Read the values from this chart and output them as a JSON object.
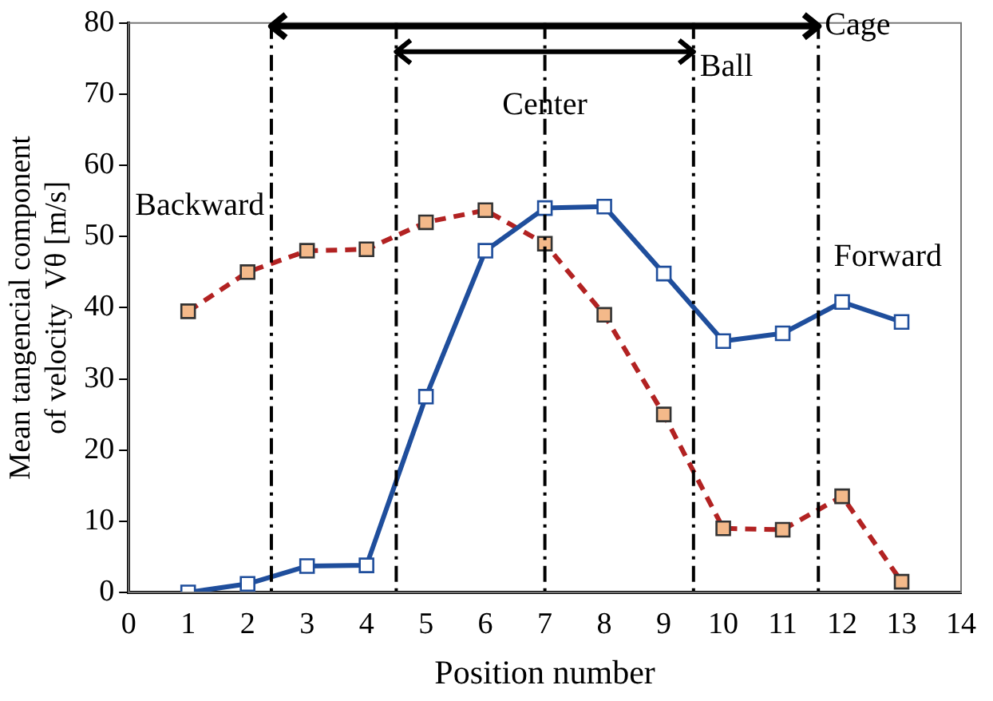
{
  "chart_data": {
    "type": "line",
    "xlabel": "Position number",
    "ylabel": "Mean tangencial component of velocity  Vθ [m/s]",
    "x": [
      1,
      2,
      3,
      4,
      5,
      6,
      7,
      8,
      9,
      10,
      11,
      12,
      13
    ],
    "xlim": [
      0,
      14
    ],
    "xticks": [
      0,
      1,
      2,
      3,
      4,
      5,
      6,
      7,
      8,
      9,
      10,
      11,
      12,
      13,
      14
    ],
    "ylim": [
      0,
      80
    ],
    "yticks": [
      0,
      10,
      20,
      30,
      40,
      50,
      60,
      70,
      80
    ],
    "grid": false,
    "legend": false,
    "marker": "square",
    "series": [
      {
        "color": "#1f4e9c",
        "line_style": "solid",
        "values": [
          0,
          1.2,
          3.7,
          3.8,
          27.5,
          48,
          54,
          54.2,
          44.8,
          35.3,
          36.4,
          40.8,
          38
        ]
      },
      {
        "color": "#b22222",
        "line_style": "dashed",
        "values": [
          39.5,
          45,
          48,
          48.2,
          52,
          53.7,
          49,
          39,
          25,
          9,
          8.8,
          13.5,
          1.5
        ]
      }
    ],
    "ref_lines": [
      {
        "axis": "x",
        "value": 2.4,
        "line_style": "dashed"
      },
      {
        "axis": "x",
        "value": 4.5,
        "line_style": "dashed"
      },
      {
        "axis": "x",
        "value": 7,
        "label": "Center",
        "line_style": "dashed"
      },
      {
        "axis": "x",
        "value": 9.5,
        "label": "Ball",
        "line_style": "dashed"
      },
      {
        "axis": "x",
        "value": 11.6,
        "label": "Cage",
        "line_style": "dashed"
      }
    ],
    "annotations": [
      "Backward",
      "Forward"
    ]
  }
}
